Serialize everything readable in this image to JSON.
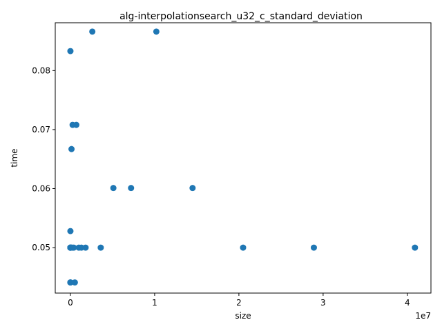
{
  "chart_data": {
    "type": "scatter",
    "title": "alg-interpolationsearch_u32_c_standard_deviation",
    "xlabel": "size",
    "ylabel": "time",
    "x_offset_label": "1e7",
    "xlim": [
      -1800000,
      42800000
    ],
    "ylim": [
      0.0423,
      0.0881
    ],
    "x_ticks": [
      0,
      10000000,
      20000000,
      30000000,
      40000000
    ],
    "x_tick_labels": [
      "0",
      "1",
      "2",
      "3",
      "4"
    ],
    "y_ticks": [
      0.05,
      0.06,
      0.07,
      0.08
    ],
    "y_tick_labels": [
      "0.05",
      "0.06",
      "0.07",
      "0.08"
    ],
    "grid": false,
    "marker_color": "#1f77b4",
    "series": [
      {
        "x": [
          1,
          2,
          4,
          8,
          16,
          32,
          64,
          128,
          256,
          512,
          1024,
          2048,
          4096,
          8192,
          16384,
          32768,
          65536,
          131072,
          200000,
          262144,
          400000,
          524288,
          700000,
          1000000,
          1300000,
          1800000,
          2600000,
          3600000,
          5100000,
          7200000,
          10200000,
          14500000,
          20500000,
          28900000,
          40900000
        ],
        "y": [
          0.0441,
          0.05,
          0.0441,
          0.0528,
          0.05,
          0.0833,
          0.05,
          0.05,
          0.0441,
          0.05,
          0.05,
          0.05,
          0.05,
          0.05,
          0.05,
          0.05,
          0.05,
          0.0667,
          0.05,
          0.0708,
          0.05,
          0.0441,
          0.0708,
          0.05,
          0.05,
          0.05,
          0.0866,
          0.05,
          0.0601,
          0.0601,
          0.0866,
          0.0601,
          0.05,
          0.05,
          0.05
        ]
      }
    ]
  }
}
